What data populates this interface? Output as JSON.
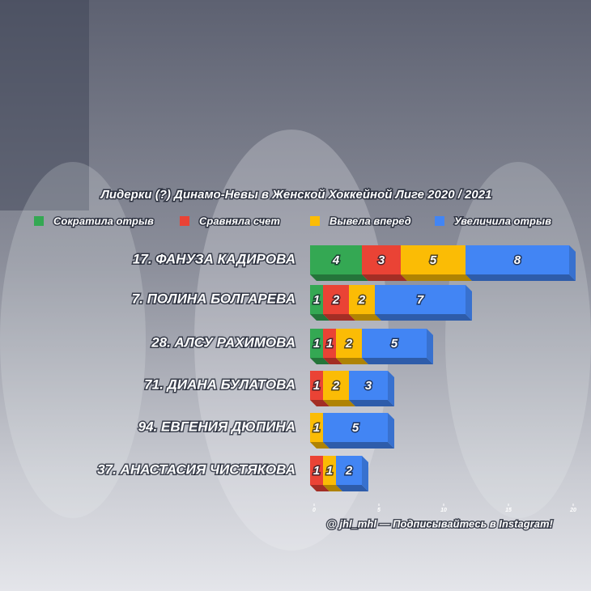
{
  "chart_data": {
    "type": "stacked_bar_horizontal",
    "title": "Лидерки (?) Динамо-Невы в Женской Хоккейной Лиге 2020 / 2021",
    "categories": [
      "17. ФАНУЗА КАДИРОВА",
      "7. ПОЛИНА БОЛГАРЕВА",
      "28. АЛСУ РАХИМОВА",
      "71. ДИАНА БУЛАТОВА",
      "94. ЕВГЕНИЯ ДЮПИНА",
      "37. АНАСТАСИЯ ЧИСТЯКОВА"
    ],
    "series": [
      {
        "name": "Сократила отрыв",
        "color": "#34a853",
        "values": [
          4,
          1,
          1,
          0,
          0,
          0
        ]
      },
      {
        "name": "Сравняла счет",
        "color": "#ea4335",
        "values": [
          3,
          2,
          1,
          1,
          0,
          1
        ]
      },
      {
        "name": "Вывела вперед",
        "color": "#fbbc05",
        "values": [
          5,
          2,
          2,
          2,
          1,
          1
        ]
      },
      {
        "name": "Увеличила отрыв",
        "color": "#4285f4",
        "values": [
          8,
          7,
          5,
          3,
          5,
          2
        ]
      }
    ],
    "xlim": [
      0,
      20
    ],
    "xticks": [
      0,
      5,
      10,
      15,
      20
    ],
    "legend": "top",
    "footer": "@ jhl_mhl — Подписывайтесь в Instagram!"
  }
}
